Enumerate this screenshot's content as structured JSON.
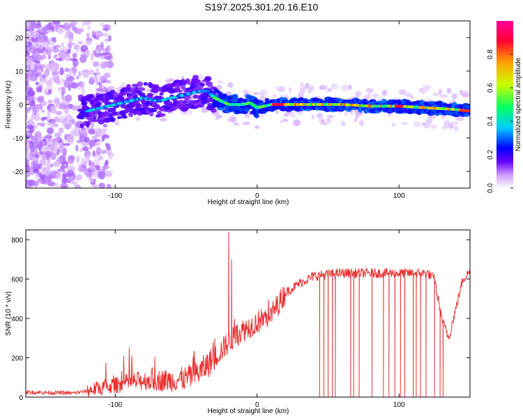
{
  "title": "S197.2025.301.20.16.E10",
  "colors": {
    "snr_line": "#e83232",
    "axis": "#000000"
  },
  "chart_data": [
    {
      "type": "heatmap",
      "name": "spectrogram",
      "xlabel": "Height of straight line (km)",
      "ylabel": "Frequency (Hz)",
      "xlim": [
        -163,
        150
      ],
      "ylim": [
        -25,
        25
      ],
      "x_ticks": [
        "-100",
        "0",
        "100"
      ],
      "x_tick_values": [
        -100,
        0,
        100
      ],
      "y_ticks": [
        "20",
        "10",
        "0",
        "-10",
        "-20"
      ],
      "y_tick_values": [
        20,
        10,
        0,
        -10,
        -20
      ],
      "colorbar": {
        "label": "Normalized spectral amplitude",
        "range": [
          0,
          1
        ],
        "ticks": [
          "0.0",
          "0.2",
          "0.4",
          "0.6",
          "0.8"
        ],
        "tick_values": [
          0,
          0.2,
          0.4,
          0.6,
          0.8
        ],
        "colormap": [
          "#ffffff",
          "#cc99ff",
          "#6600ff",
          "#0000ff",
          "#00ccff",
          "#00ff66",
          "#ccff00",
          "#ff9900",
          "#ff0033",
          "#ff0099"
        ]
      },
      "ridge": {
        "x": [
          -120,
          -110,
          -100,
          -90,
          -80,
          -70,
          -60,
          -50,
          -40,
          -35,
          -30,
          -25,
          -20,
          -15,
          -10,
          -5,
          0,
          10,
          20,
          40,
          60,
          80,
          100,
          120,
          140,
          150
        ],
        "y": [
          -2,
          -1,
          0,
          1,
          2,
          1,
          2,
          3,
          4,
          4,
          2,
          1,
          0,
          0,
          0,
          0.5,
          -1,
          0,
          0,
          0,
          0,
          -0.5,
          -0.5,
          -1,
          -1.5,
          -2
        ]
      }
    },
    {
      "type": "line",
      "name": "snr",
      "xlabel": "Height of straight line (km)",
      "ylabel": "SNR (10 * v/v)",
      "xlim": [
        -163,
        150
      ],
      "ylim": [
        0,
        850
      ],
      "x_ticks": [
        "-100",
        "0",
        "100"
      ],
      "x_tick_values": [
        -100,
        0,
        100
      ],
      "y_ticks": [
        "800",
        "600",
        "400",
        "200",
        "0"
      ],
      "y_tick_values": [
        800,
        600,
        400,
        200,
        0
      ],
      "trend": {
        "x": [
          -163,
          -140,
          -130,
          -120,
          -110,
          -100,
          -90,
          -80,
          -70,
          -60,
          -50,
          -40,
          -30,
          -20,
          -10,
          0,
          10,
          20,
          30,
          40,
          50,
          60,
          70,
          80,
          90,
          100,
          110,
          120,
          125,
          130,
          135,
          140,
          145,
          150
        ],
        "y": [
          25,
          22,
          20,
          30,
          50,
          60,
          75,
          85,
          85,
          85,
          95,
          130,
          200,
          280,
          340,
          380,
          420,
          530,
          580,
          615,
          625,
          630,
          630,
          630,
          630,
          630,
          630,
          630,
          600,
          400,
          300,
          450,
          600,
          640
        ]
      },
      "spike_x": [
        -20,
        -18
      ],
      "spike_y": [
        840,
        700
      ],
      "dropout_x": [
        44,
        47,
        50,
        53,
        55,
        66,
        68,
        72,
        81,
        89,
        93,
        97,
        101,
        104,
        110,
        112,
        115,
        119,
        125,
        129,
        131
      ],
      "dropout_y": 0
    }
  ]
}
